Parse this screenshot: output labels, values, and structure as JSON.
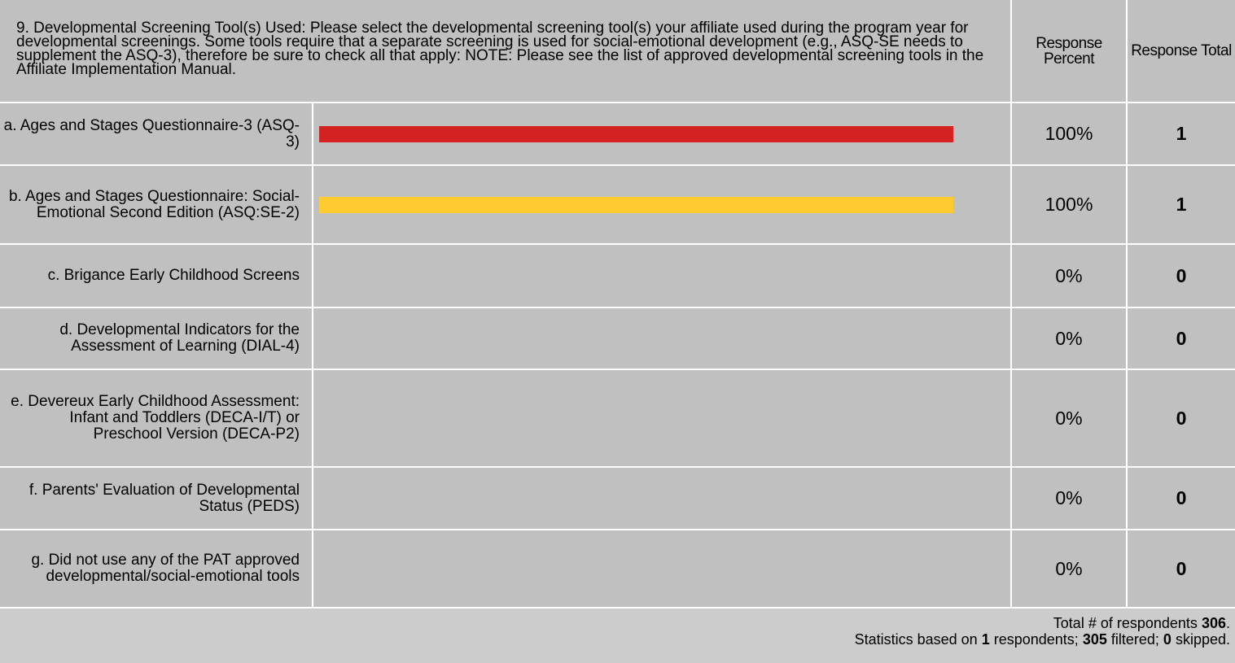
{
  "chart_data": {
    "type": "bar",
    "title": "9. Developmental Screening Tool(s) Used: Please select the developmental screening tool(s) your affiliate used during the program year for developmental screenings. Some tools require that a separate screening is used for social-emotional development (e.g., ASQ-SE needs to supplement the ASQ-3), therefore be sure to check all that apply:  NOTE: Please see the list of approved developmental screening tools in the Affiliate Implementation Manual.",
    "column_headers": [
      "Response Percent",
      "Response Total"
    ],
    "categories": [
      "a. Ages and Stages Questionnaire-3 (ASQ-3)",
      "b. Ages and Stages Questionnaire: Social-Emotional Second Edition (ASQ:SE-2)",
      "c. Brigance Early Childhood Screens",
      "d. Developmental Indicators for the Assessment of Learning (DIAL-4)",
      "e. Devereux Early Childhood Assessment: Infant and Toddlers (DECA-I/T) or Preschool Version (DECA-P2)",
      "f. Parents' Evaluation of Developmental Status (PEDS)",
      "g. Did not use any of the PAT approved developmental/social-emotional tools"
    ],
    "values": [
      100,
      100,
      0,
      0,
      0,
      0,
      0
    ],
    "value_labels": [
      "100%",
      "100%",
      "0%",
      "0%",
      "0%",
      "0%",
      "0%"
    ],
    "totals": [
      1,
      1,
      0,
      0,
      0,
      0,
      0
    ],
    "colors": [
      "#d42222",
      "#ffcb30",
      "#c0c0c0",
      "#c0c0c0",
      "#c0c0c0",
      "#c0c0c0",
      "#c0c0c0"
    ],
    "footer": [
      [
        "Total # of respondents",
        306,
        "."
      ],
      [
        "Statistics based on",
        1,
        "respondents;",
        305,
        "filtered;",
        0,
        "skipped."
      ]
    ]
  }
}
